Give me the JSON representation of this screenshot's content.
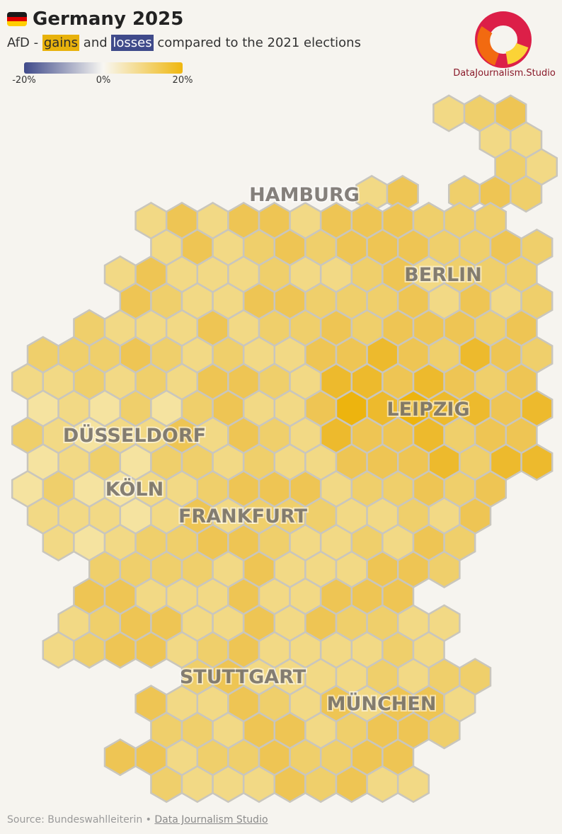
{
  "header": {
    "title": "Germany 2025",
    "subtitle_prefix": "AfD - ",
    "subtitle_gains": "gains",
    "subtitle_and": " and ",
    "subtitle_losses": "losses",
    "subtitle_suffix": " compared to the 2021 elections"
  },
  "legend": {
    "min_label": "-20%",
    "mid_label": "0%",
    "max_label": "20%",
    "colors": {
      "losses": "#3f4a8a",
      "neutral": "#f8f7f2",
      "gains": "#efb70f"
    }
  },
  "logo": {
    "text": "DataJournalism.Studio"
  },
  "map": {
    "cities": [
      "HAMBURG",
      "BERLIN",
      "LEIPZIG",
      "DÜSSELDORF",
      "KÖLN",
      "FRANKFURT",
      "STUTTGART",
      "MÜNCHEN"
    ],
    "hex_fill_levels": [
      0.25,
      0.35,
      0.5,
      0.65,
      0.8,
      1.0
    ]
  },
  "footer": {
    "source": "Source: Bundeswahlleiterin • ",
    "link": "Data Journalism Studio"
  }
}
